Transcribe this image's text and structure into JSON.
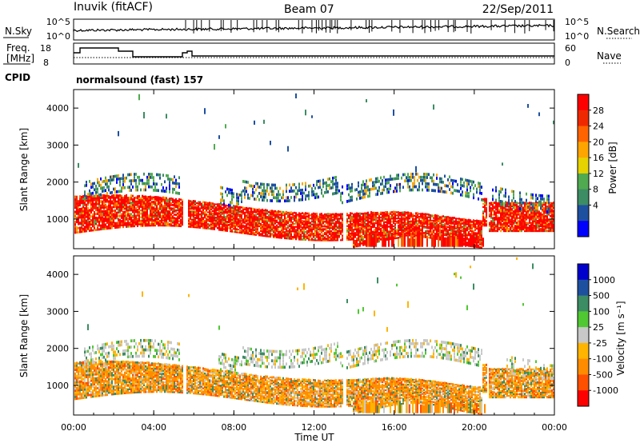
{
  "header": {
    "station": "Inuvik (fitACF)",
    "beam": "Beam 07",
    "date": "22/Sep/2011"
  },
  "panels": {
    "nsky": {
      "label": "N.Sky",
      "ytop": "10^5",
      "ybottom": "10^0",
      "right_label": "N.Search",
      "rtop": "10^5",
      "rbottom": "10^0"
    },
    "freq": {
      "label": "Freq.",
      "unit": "[MHz]",
      "yticks": [
        "18",
        "8"
      ],
      "right_label": "Nave",
      "rticks": [
        "60",
        "0"
      ]
    },
    "cpid": {
      "label": "CPID",
      "text": "normalsound (fast) 157"
    }
  },
  "colors": {
    "power": [
      "#0000ff",
      "#1e50a0",
      "#3c8c64",
      "#50aa50",
      "#e6d200",
      "#ffa500",
      "#ff6400",
      "#f02800",
      "#ff0000"
    ],
    "velocity": [
      "#0000cc",
      "#1e50a0",
      "#3c8c64",
      "#50c832",
      "#c8c8c8",
      "#ffb400",
      "#ff8c00",
      "#ff5000",
      "#ff0000"
    ]
  },
  "chart_data": [
    {
      "type": "heatmap",
      "name": "power",
      "ylabel": "Slant Range [km]",
      "ylim": [
        200,
        4500
      ],
      "yticks": [
        1000,
        2000,
        3000,
        4000
      ],
      "colorbar": {
        "label": "Power [dB]",
        "ticks": [
          "28",
          "24",
          "20",
          "16",
          "12",
          "8",
          "4"
        ],
        "range": [
          0,
          30
        ]
      }
    },
    {
      "type": "heatmap",
      "name": "velocity",
      "ylabel": "Slant Range [km]",
      "ylim": [
        200,
        4500
      ],
      "yticks": [
        1000,
        2000,
        3000,
        4000
      ],
      "colorbar": {
        "label": "Velocity [m s⁻¹]",
        "ticks": [
          "1000",
          "500",
          "100",
          "25",
          "-25",
          "-100",
          "-500",
          "-1000"
        ]
      }
    }
  ],
  "xaxis": {
    "label": "Time UT",
    "ticks": [
      "00:00",
      "04:00",
      "08:00",
      "12:00",
      "16:00",
      "20:00",
      "00:00"
    ]
  }
}
